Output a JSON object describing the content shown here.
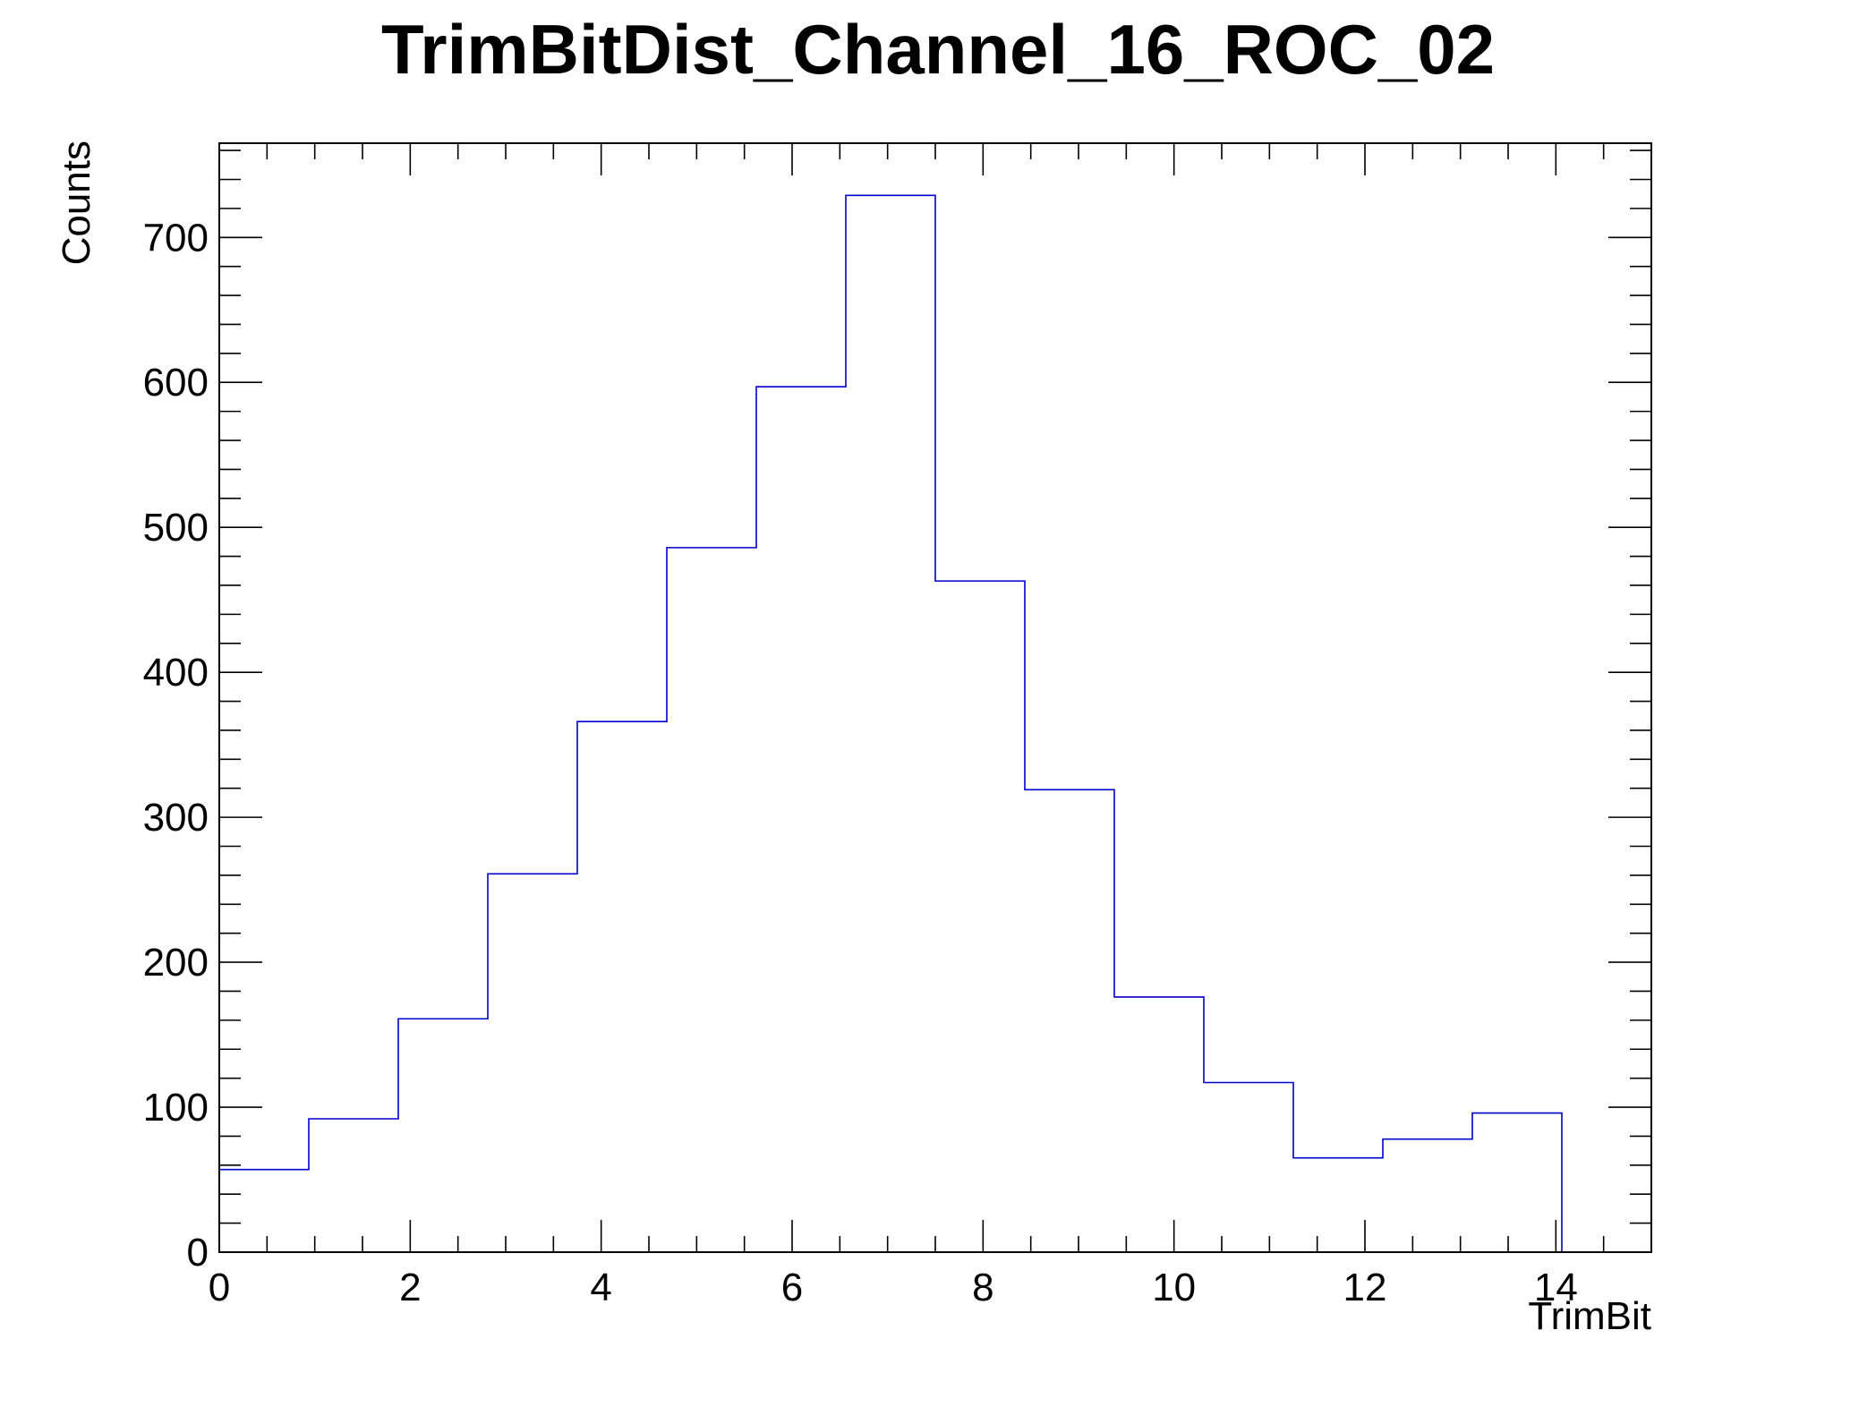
{
  "chart_data": {
    "type": "bar",
    "title": "TrimBitDist_Channel_16_ROC_02",
    "xlabel": "TrimBit",
    "ylabel": "Counts",
    "bin_edges": [
      0,
      0.9375,
      1.875,
      2.8125,
      3.75,
      4.6875,
      5.625,
      6.5625,
      7.5,
      8.4375,
      9.375,
      10.3125,
      11.25,
      12.1875,
      13.125,
      14.0625
    ],
    "values": [
      57,
      92,
      161,
      261,
      366,
      486,
      597,
      729,
      463,
      319,
      176,
      117,
      65,
      78,
      96
    ],
    "xlim": [
      0,
      15
    ],
    "ylim": [
      0,
      765
    ],
    "x_ticks": [
      "0",
      "2",
      "4",
      "6",
      "8",
      "10",
      "12",
      "14"
    ],
    "y_ticks": [
      "0",
      "100",
      "200",
      "300",
      "400",
      "500",
      "600",
      "700"
    ],
    "line_color": "#0000cc",
    "grid": false,
    "legend": "none"
  }
}
